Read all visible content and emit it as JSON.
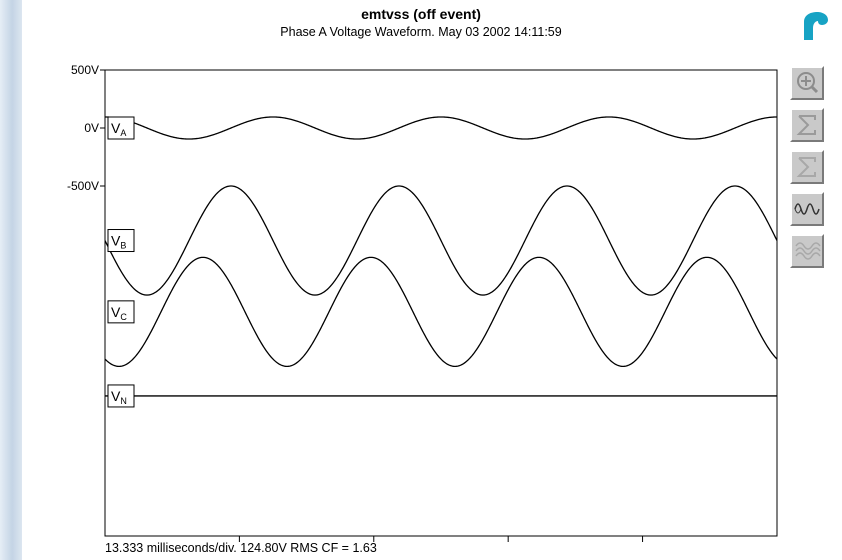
{
  "window": {
    "title": "emtvss (off event)",
    "subtitle": "Phase A Voltage Waveform. May 03 2002 14:11:59",
    "footer": "13.333 milliseconds/div.  124.80V RMS CF = 1.63"
  },
  "toolbar": {
    "buttons": [
      "zoom-in",
      "sum",
      "sum-dim",
      "waveform",
      "harmonics"
    ]
  },
  "colors": {
    "trace": "#000000",
    "button_face": "#c9c9c9",
    "logo": "#17a3c4"
  },
  "chart_data": {
    "type": "line",
    "title": "emtvss (off event)",
    "subtitle": "Phase A Voltage Waveform. May 03 2002 14:11:59",
    "x_unit": "ms",
    "x_per_division": 13.333,
    "x_divisions": 5,
    "xlim": [
      0,
      66.67
    ],
    "frequency_hz": 60,
    "y_ticks": [
      "500V",
      "0V",
      "-500V"
    ],
    "y_tick_values": [
      500,
      0,
      -500
    ],
    "series": [
      {
        "name": "VA",
        "label_main": "V",
        "label_sub": "A",
        "amplitude_v": 95,
        "phase_deg": 90,
        "offset_v": 0
      },
      {
        "name": "VB",
        "label_main": "V",
        "label_sub": "B",
        "amplitude_v": 470,
        "phase_deg": 180,
        "offset_v": -970
      },
      {
        "name": "VC",
        "label_main": "V",
        "label_sub": "C",
        "amplitude_v": 470,
        "phase_deg": -120,
        "offset_v": -1585
      },
      {
        "name": "VN",
        "label_main": "V",
        "label_sub": "N",
        "amplitude_v": 0,
        "phase_deg": 0,
        "offset_v": -2310
      }
    ],
    "rms": "124.80V",
    "crest_factor": 1.63
  }
}
